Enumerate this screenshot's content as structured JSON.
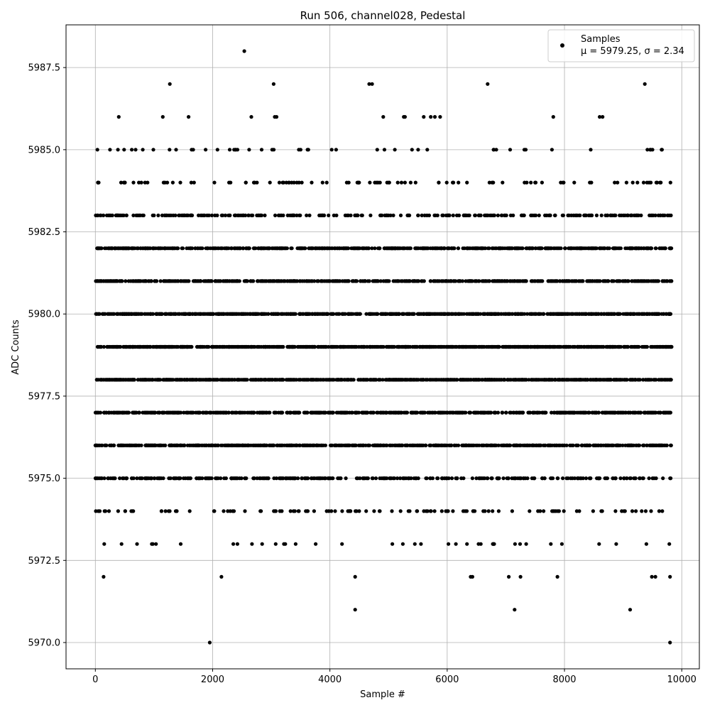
{
  "chart_data": {
    "type": "scatter",
    "title": "Run 506, channel028, Pedestal",
    "xlabel": "Sample #",
    "ylabel": "ADC Counts",
    "xlim": [
      -500,
      10300
    ],
    "ylim": [
      5969.2,
      5988.8
    ],
    "xticks": [
      0,
      2000,
      4000,
      6000,
      8000,
      10000
    ],
    "xtick_labels": [
      "0",
      "2000",
      "4000",
      "6000",
      "8000",
      "10000"
    ],
    "yticks": [
      5970.0,
      5972.5,
      5975.0,
      5977.5,
      5980.0,
      5982.5,
      5985.0,
      5987.5
    ],
    "ytick_labels": [
      "5970.0",
      "5972.5",
      "5975.0",
      "5977.5",
      "5980.0",
      "5982.5",
      "5985.0",
      "5987.5"
    ],
    "grid": true,
    "legend_position": "top-right",
    "series": [
      {
        "name": "Samples",
        "stats_label": "μ = 5979.25, σ = 2.34",
        "color": "#000000",
        "sample_count": 9830,
        "x_range": [
          0,
          9829
        ],
        "level_density": {
          "5970": 0.0002,
          "5971": 0.0003,
          "5972": 0.0012,
          "5973": 0.004,
          "5974": 0.012,
          "5975": 0.035,
          "5976": 0.075,
          "5977": 0.125,
          "5978": 0.17,
          "5979": 0.185,
          "5980": 0.165,
          "5981": 0.12,
          "5982": 0.065,
          "5983": 0.03,
          "5984": 0.01,
          "5985": 0.005,
          "5986": 0.0012,
          "5987": 0.0005,
          "5988": 0.0001
        },
        "outliers": [
          {
            "x": 1950,
            "y": 5970
          },
          {
            "x": 9800,
            "y": 5970
          },
          {
            "x": 4430,
            "y": 5971
          },
          {
            "x": 7150,
            "y": 5971
          },
          {
            "x": 9120,
            "y": 5971
          },
          {
            "x": 140,
            "y": 5972
          },
          {
            "x": 2150,
            "y": 5972
          },
          {
            "x": 4430,
            "y": 5972
          },
          {
            "x": 6400,
            "y": 5972
          },
          {
            "x": 6430,
            "y": 5972
          },
          {
            "x": 7050,
            "y": 5972
          },
          {
            "x": 7250,
            "y": 5972
          },
          {
            "x": 7880,
            "y": 5972
          },
          {
            "x": 9490,
            "y": 5972
          },
          {
            "x": 9550,
            "y": 5972
          },
          {
            "x": 9800,
            "y": 5972
          },
          {
            "x": 2540,
            "y": 5988
          },
          {
            "x": 1270,
            "y": 5987
          },
          {
            "x": 3040,
            "y": 5987
          },
          {
            "x": 4670,
            "y": 5987
          },
          {
            "x": 4720,
            "y": 5987
          },
          {
            "x": 6690,
            "y": 5987
          },
          {
            "x": 9370,
            "y": 5987
          },
          {
            "x": 400,
            "y": 5986
          },
          {
            "x": 1150,
            "y": 5986
          },
          {
            "x": 1590,
            "y": 5986
          },
          {
            "x": 2660,
            "y": 5986
          },
          {
            "x": 3060,
            "y": 5986
          },
          {
            "x": 3090,
            "y": 5986
          },
          {
            "x": 4910,
            "y": 5986
          },
          {
            "x": 5260,
            "y": 5986
          },
          {
            "x": 5280,
            "y": 5986
          },
          {
            "x": 5600,
            "y": 5986
          },
          {
            "x": 5720,
            "y": 5986
          },
          {
            "x": 5790,
            "y": 5986
          },
          {
            "x": 5880,
            "y": 5986
          },
          {
            "x": 7810,
            "y": 5986
          },
          {
            "x": 8600,
            "y": 5986
          },
          {
            "x": 8650,
            "y": 5986
          }
        ]
      }
    ]
  }
}
